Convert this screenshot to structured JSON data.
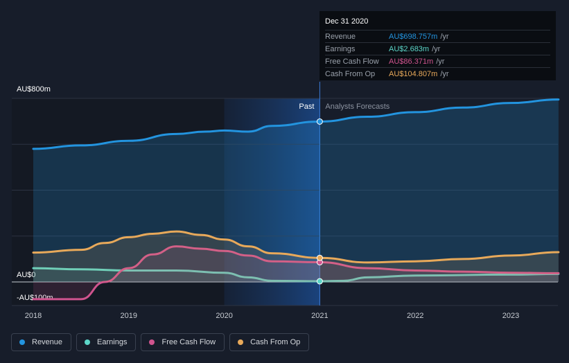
{
  "chart_data": {
    "type": "area",
    "ylabels": {
      "top": "AU$800m",
      "zero": "AU$0",
      "bottom": "-AU$100m"
    },
    "ylim": [
      -100,
      800
    ],
    "xlim": [
      2017.9,
      2023.5
    ],
    "xticks": [
      "2018",
      "2019",
      "2020",
      "2021",
      "2022",
      "2023"
    ],
    "divider_x": 2021.0,
    "past_label": "Past",
    "forecast_label": "Analysts Forecasts",
    "series": [
      {
        "name": "Revenue",
        "color": "#2394df",
        "points": [
          [
            2018,
            580
          ],
          [
            2018.5,
            595
          ],
          [
            2019,
            615
          ],
          [
            2019.5,
            645
          ],
          [
            2019.8,
            655
          ],
          [
            2020,
            660
          ],
          [
            2020.25,
            655
          ],
          [
            2020.5,
            680
          ],
          [
            2021,
            699
          ],
          [
            2021.5,
            720
          ],
          [
            2022,
            740
          ],
          [
            2022.5,
            760
          ],
          [
            2023,
            780
          ],
          [
            2023.5,
            795
          ]
        ]
      },
      {
        "name": "Earnings",
        "color": "#5cd6c8",
        "points": [
          [
            2018,
            60
          ],
          [
            2018.5,
            55
          ],
          [
            2019,
            50
          ],
          [
            2019.5,
            50
          ],
          [
            2020,
            40
          ],
          [
            2020.25,
            20
          ],
          [
            2020.5,
            5
          ],
          [
            2021,
            3
          ],
          [
            2021.25,
            5
          ],
          [
            2021.5,
            20
          ],
          [
            2022,
            28
          ],
          [
            2023,
            32
          ],
          [
            2023.5,
            35
          ]
        ]
      },
      {
        "name": "Free Cash Flow",
        "color": "#d0548e",
        "points": [
          [
            2018,
            -75
          ],
          [
            2018.5,
            -75
          ],
          [
            2018.75,
            0
          ],
          [
            2019,
            60
          ],
          [
            2019.25,
            120
          ],
          [
            2019.5,
            155
          ],
          [
            2019.75,
            145
          ],
          [
            2020,
            135
          ],
          [
            2020.25,
            115
          ],
          [
            2020.5,
            90
          ],
          [
            2021,
            86
          ],
          [
            2021.5,
            60
          ],
          [
            2022,
            50
          ],
          [
            2022.5,
            45
          ],
          [
            2023,
            40
          ],
          [
            2023.5,
            38
          ]
        ]
      },
      {
        "name": "Cash From Op",
        "color": "#e8a95a",
        "points": [
          [
            2018,
            128
          ],
          [
            2018.5,
            140
          ],
          [
            2018.75,
            170
          ],
          [
            2019,
            195
          ],
          [
            2019.25,
            210
          ],
          [
            2019.5,
            220
          ],
          [
            2019.75,
            205
          ],
          [
            2020,
            185
          ],
          [
            2020.25,
            155
          ],
          [
            2020.5,
            125
          ],
          [
            2021,
            105
          ],
          [
            2021.5,
            85
          ],
          [
            2022,
            90
          ],
          [
            2022.5,
            100
          ],
          [
            2023,
            115
          ],
          [
            2023.5,
            130
          ]
        ]
      }
    ]
  },
  "tooltip": {
    "date": "Dec 31 2020",
    "rows": [
      {
        "label": "Revenue",
        "value": "AU$698.757m",
        "unit": "/yr",
        "color": "#2394df"
      },
      {
        "label": "Earnings",
        "value": "AU$2.683m",
        "unit": "/yr",
        "color": "#5cd6c8"
      },
      {
        "label": "Free Cash Flow",
        "value": "AU$86.371m",
        "unit": "/yr",
        "color": "#d0548e"
      },
      {
        "label": "Cash From Op",
        "value": "AU$104.807m",
        "unit": "/yr",
        "color": "#e8a95a"
      }
    ]
  },
  "legend": [
    {
      "label": "Revenue",
      "color": "#2394df"
    },
    {
      "label": "Earnings",
      "color": "#5cd6c8"
    },
    {
      "label": "Free Cash Flow",
      "color": "#d0548e"
    },
    {
      "label": "Cash From Op",
      "color": "#e8a95a"
    }
  ]
}
